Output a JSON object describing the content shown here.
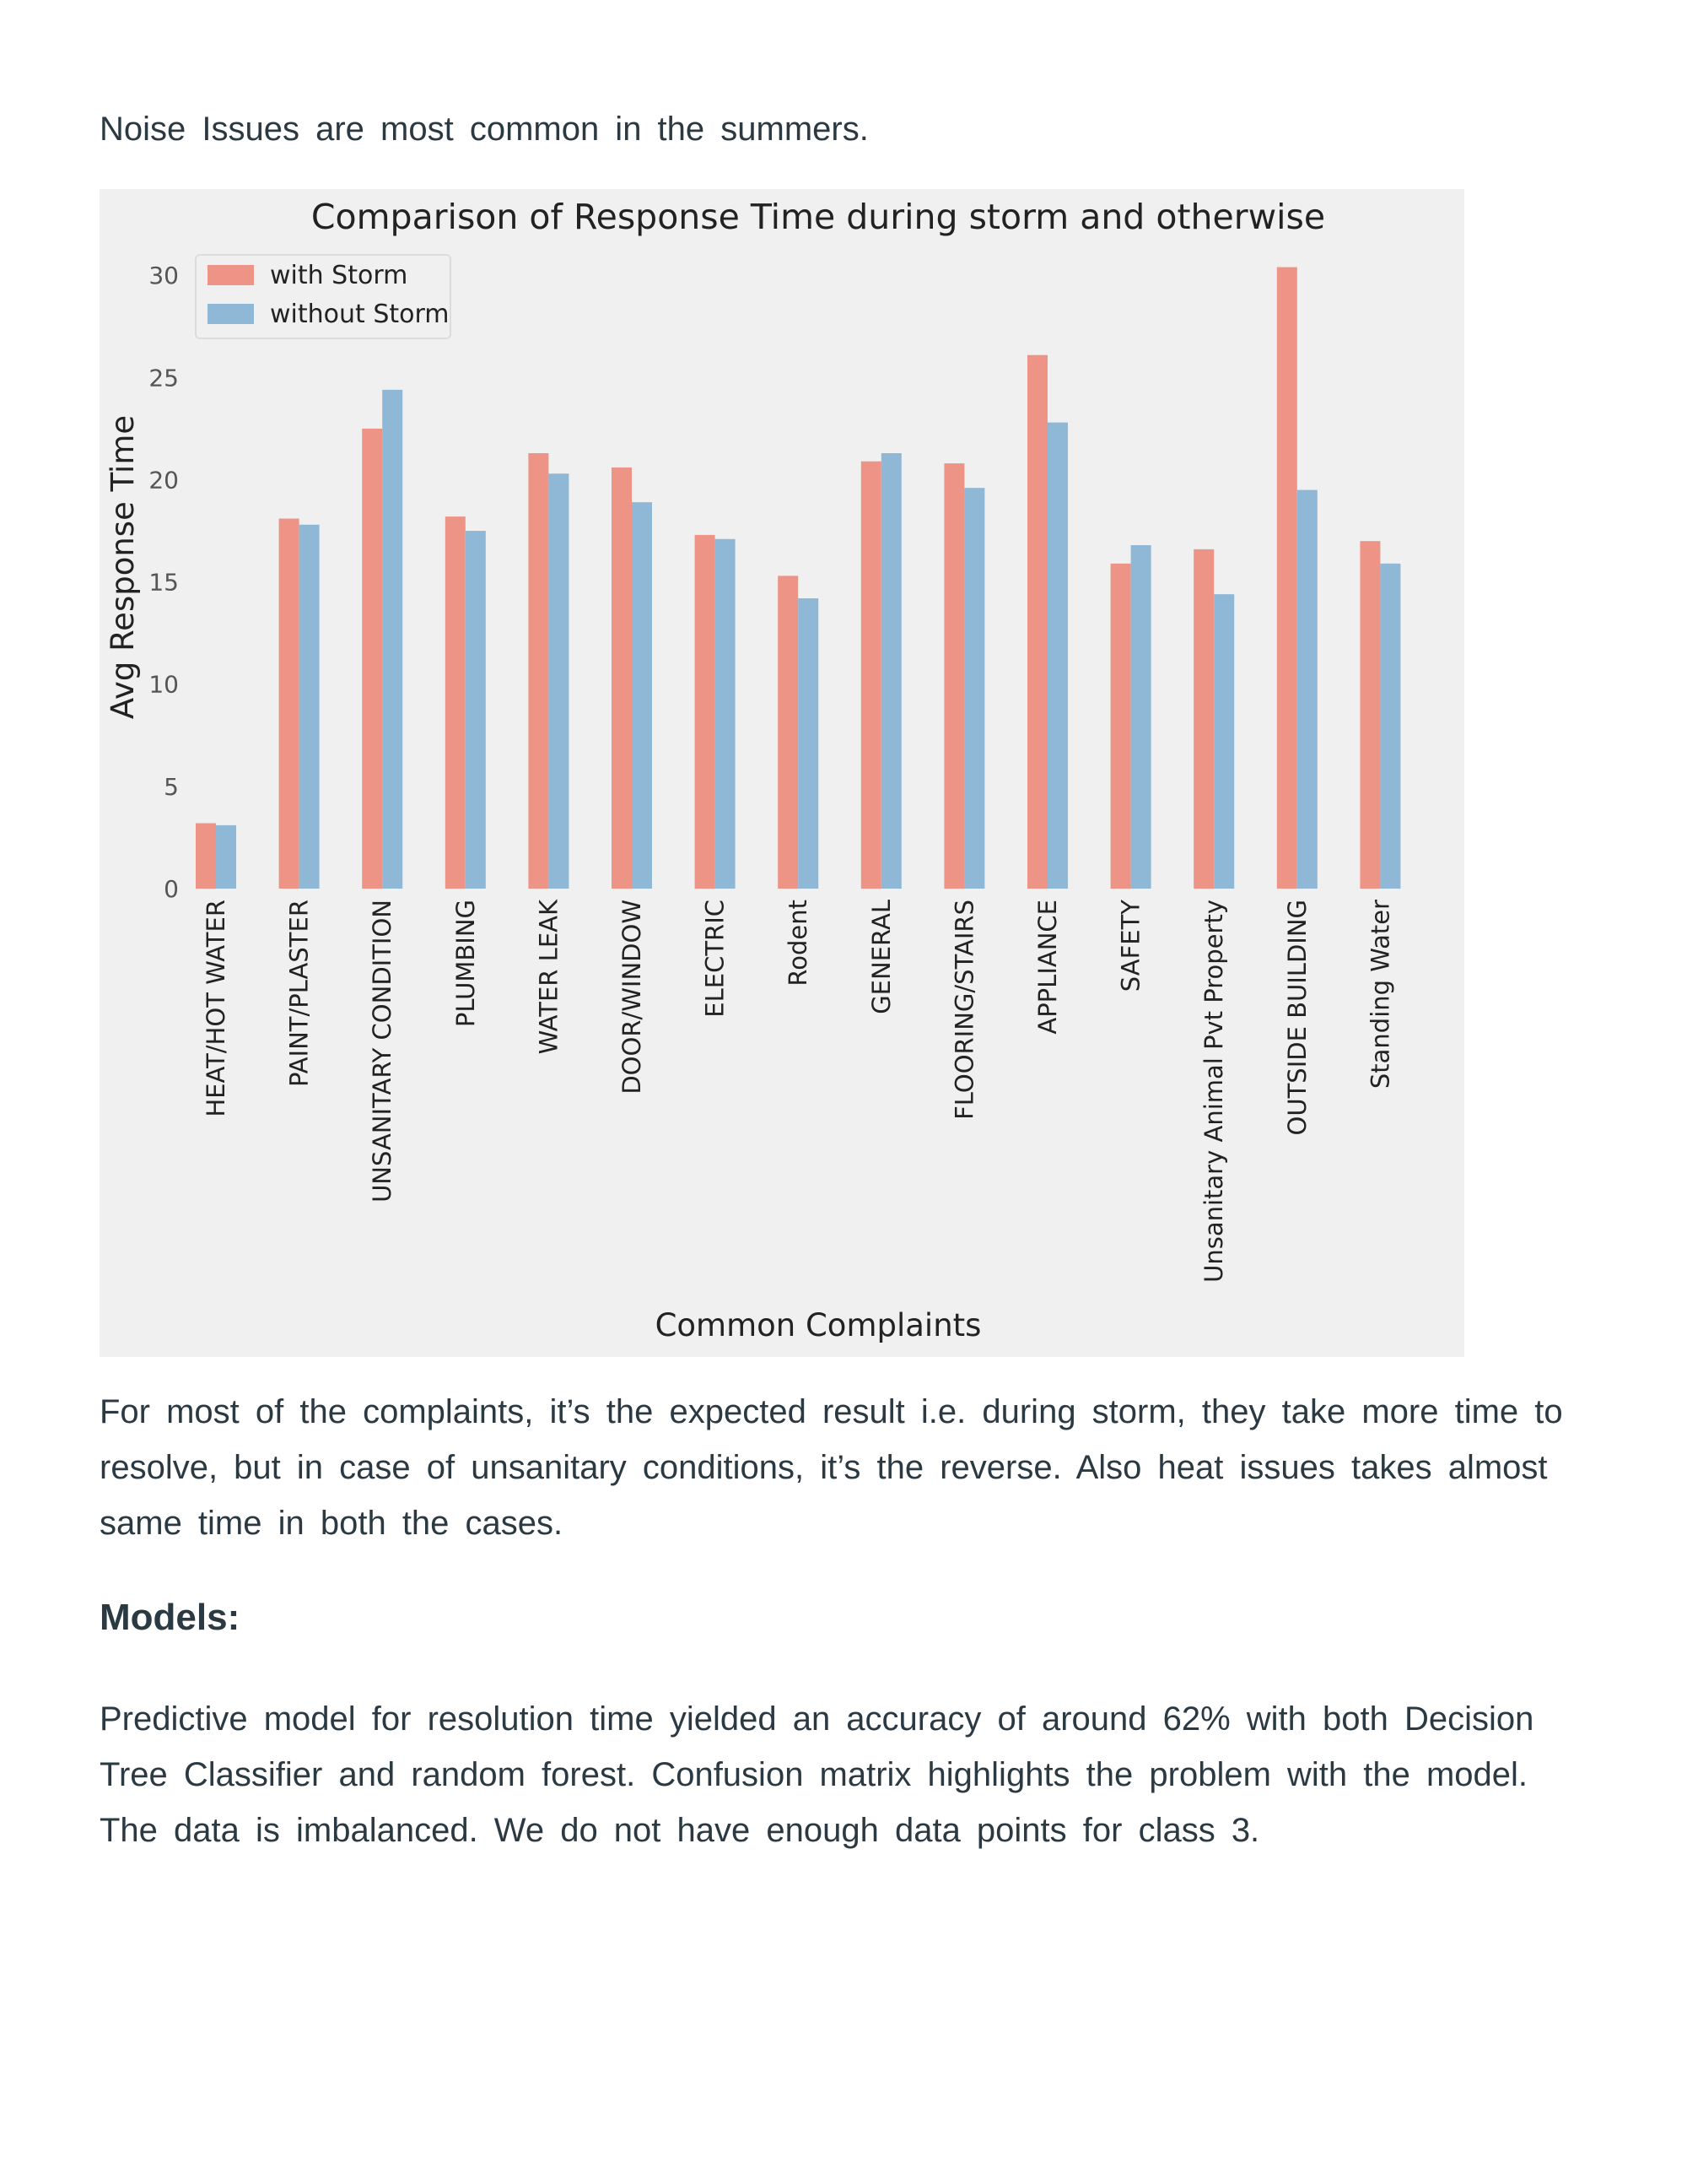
{
  "doc": {
    "intro": "Noise Issues are most common in the summers.",
    "analysis": "For most of the complaints, it’s the expected result i.e. during storm, they take more time to resolve, but in case of unsanitary conditions, it’s the reverse. Also heat issues takes almost same time in both the cases.",
    "models_heading": "Models:",
    "models_text": "Predictive model for resolution time yielded an accuracy of around 62% with both Decision Tree Classifier and random forest.  Confusion matrix highlights the problem with the model. The data is imbalanced. We do not have enough data points for class 3."
  },
  "chart_data": {
    "type": "bar",
    "title": "Comparison of Response Time during storm and otherwise",
    "xlabel": "Common Complaints",
    "ylabel": "Avg Response Time",
    "ylim": [
      0,
      31
    ],
    "yticks": [
      0,
      5,
      10,
      15,
      20,
      25,
      30
    ],
    "grid": false,
    "legend_position": "top-left",
    "categories": [
      "HEAT/HOT WATER",
      "PAINT/PLASTER",
      "UNSANITARY CONDITION",
      "PLUMBING",
      "WATER LEAK",
      "DOOR/WINDOW",
      "ELECTRIC",
      "Rodent",
      "GENERAL",
      "FLOORING/STAIRS",
      "APPLIANCE",
      "SAFETY",
      "Unsanitary Animal Pvt Property",
      "OUTSIDE BUILDING",
      "Standing Water"
    ],
    "series": [
      {
        "name": "with Storm",
        "color": "#ee9487",
        "values": [
          3.2,
          18.1,
          22.5,
          18.2,
          21.3,
          20.6,
          17.3,
          15.3,
          20.9,
          20.8,
          26.1,
          15.9,
          16.6,
          30.4,
          17.0
        ]
      },
      {
        "name": "without Storm",
        "color": "#8fb7d6",
        "values": [
          3.1,
          17.8,
          24.4,
          17.5,
          20.3,
          18.9,
          17.1,
          14.2,
          21.3,
          19.6,
          22.8,
          16.8,
          14.4,
          19.5,
          15.9
        ]
      }
    ]
  }
}
